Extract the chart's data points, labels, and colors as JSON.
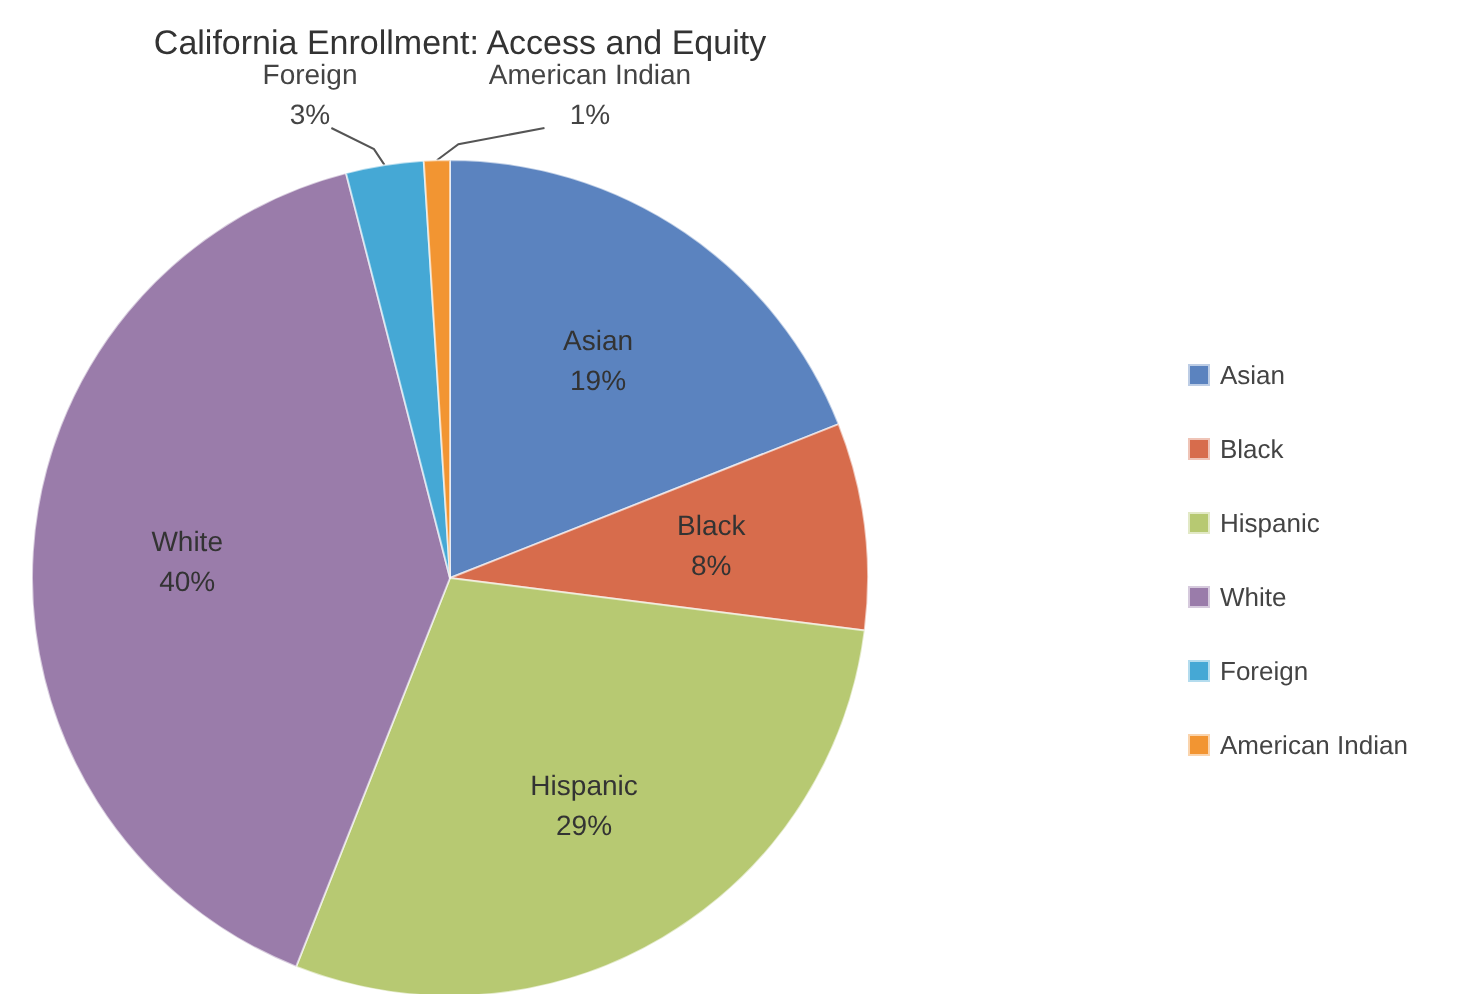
{
  "chart_data": {
    "type": "pie",
    "title": "California Enrollment: Access and Equity",
    "categories": [
      "Asian",
      "Black",
      "Hispanic",
      "White",
      "Foreign",
      "American Indian"
    ],
    "values": [
      19,
      8,
      29,
      40,
      3,
      1
    ],
    "colors": [
      "#5b83bf",
      "#d76c4c",
      "#b7c972",
      "#9a7caa",
      "#45a8d5",
      "#f29532"
    ],
    "value_labels": [
      "19%",
      "8%",
      "29%",
      "40%",
      "3%",
      "1%"
    ],
    "legend": "right"
  }
}
